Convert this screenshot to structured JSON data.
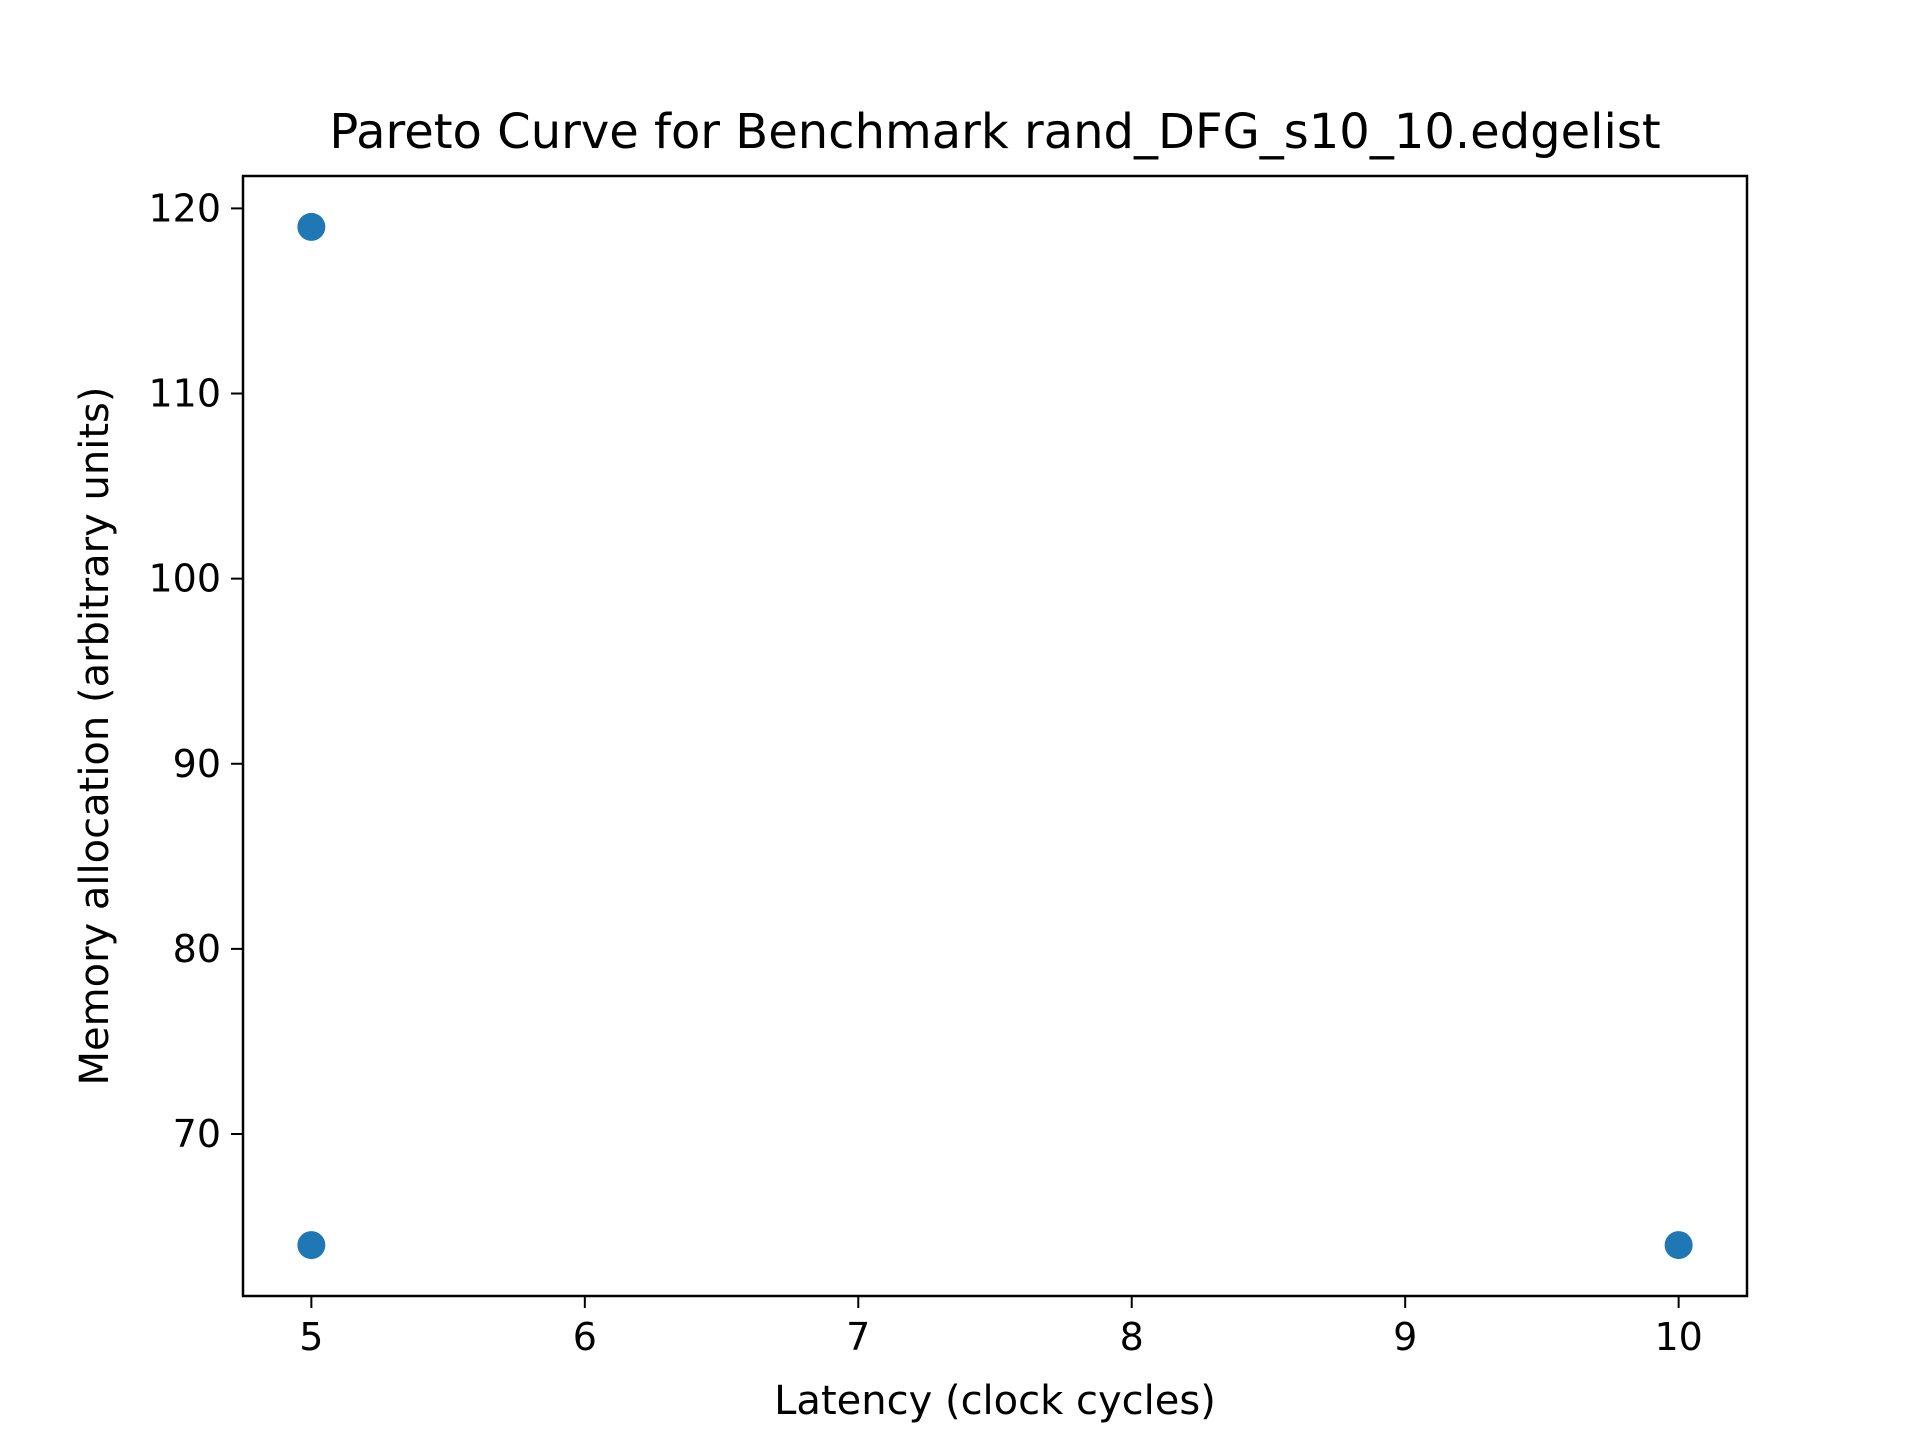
{
  "chart_data": {
    "type": "scatter",
    "title": "Pareto Curve for Benchmark rand_DFG_s10_10.edgelist",
    "xlabel": "Latency (clock cycles)",
    "ylabel": "Memory allocation (arbitrary units)",
    "xlim": [
      4.75,
      10.25
    ],
    "ylim": [
      61.25,
      121.75
    ],
    "xticks": [
      5,
      6,
      7,
      8,
      9,
      10
    ],
    "yticks": [
      70,
      80,
      90,
      100,
      110,
      120
    ],
    "grid": false,
    "legend": "none",
    "series": [
      {
        "color": "#1f77b4",
        "points": [
          {
            "x": 5,
            "y": 119
          },
          {
            "x": 5,
            "y": 64
          },
          {
            "x": 10,
            "y": 64
          }
        ]
      }
    ]
  }
}
